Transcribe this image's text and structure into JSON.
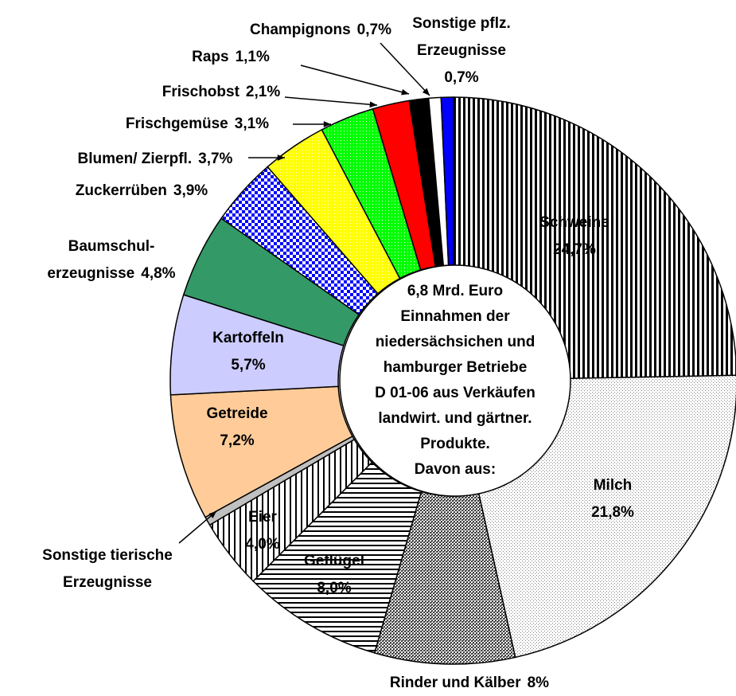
{
  "chart_data": {
    "type": "donut",
    "center_text": [
      "6,8 Mrd. Euro",
      "Einnahmen der",
      "niedersächsichen und",
      "hamburger Betriebe",
      "D 01-06 aus Verkäufen",
      "landwirt. und gärtner.",
      "Produkte.",
      "Davon aus:"
    ],
    "categories": [
      [
        "Schweine"
      ],
      [
        "Milch"
      ],
      [
        "Rinder und Kälber"
      ],
      [
        "Geflügel"
      ],
      [
        "Eier"
      ],
      [
        "Sonstige tierische",
        "Erzeugnisse"
      ],
      [
        "Getreide"
      ],
      [
        "Kartoffeln"
      ],
      [
        "Baumschul-",
        "erzeugnisse"
      ],
      [
        "Zuckerrüben"
      ],
      [
        "Blumen/ Zierpfl."
      ],
      [
        "Frischgemüse"
      ],
      [
        "Frischobst"
      ],
      [
        "Raps"
      ],
      [
        "Champignons"
      ],
      [
        "Sonstige pflz.",
        "Erzeugnisse"
      ]
    ],
    "values": [
      24.7,
      21.8,
      8,
      8.0,
      4.0,
      0.5,
      7.2,
      5.7,
      4.8,
      3.9,
      3.7,
      3.1,
      2.1,
      1.1,
      0.7,
      0.7
    ],
    "value_labels": [
      "24,7%",
      "21,8%",
      "8%",
      "8,0%",
      "4,0%",
      null,
      "7,2%",
      "5,7%",
      "4,8%",
      "3,9%",
      "3,7%",
      "3,1%",
      "2,1%",
      "1,1%",
      "0,7%",
      "0,7%"
    ],
    "colors": [
      "#000000",
      "#808080",
      "#404040",
      "#000000",
      "#000000",
      "#c0c0c0",
      "#ffcc99",
      "#ccccff",
      "#339966",
      "#0000ff",
      "#ffff00",
      "#00ff00",
      "#ff0000",
      "#000000",
      "#ffffff",
      "#0000ff"
    ]
  }
}
